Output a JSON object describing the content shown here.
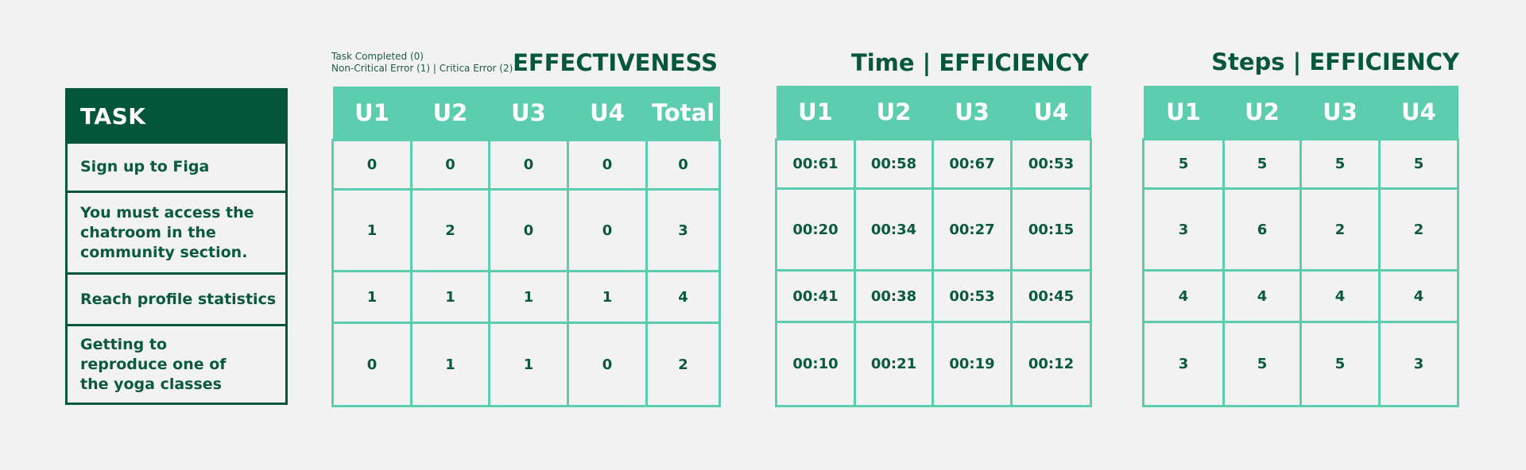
{
  "task": {
    "header": "TASK",
    "rows": [
      "Sign up to Figa",
      "You must access the\nchatroom in the\ncommunity section.",
      "Reach profile statistics",
      "Getting to\nreproduce one of\nthe yoga classes"
    ]
  },
  "effectiveness": {
    "legend": "Task Completed (0)\nNon-Critical Error (1) |  Critica Error (2)",
    "title": "EFFECTIVENESS",
    "columns": [
      "U1",
      "U2",
      "U3",
      "U4",
      "Total"
    ],
    "rows": [
      [
        "0",
        "0",
        "0",
        "0",
        "0"
      ],
      [
        "1",
        "2",
        "0",
        "0",
        "3"
      ],
      [
        "1",
        "1",
        "1",
        "1",
        "4"
      ],
      [
        "0",
        "1",
        "1",
        "0",
        "2"
      ]
    ]
  },
  "time_efficiency": {
    "title": "Time | EFFICIENCY",
    "columns": [
      "U1",
      "U2",
      "U3",
      "U4"
    ],
    "rows": [
      [
        "00:61",
        "00:58",
        "00:67",
        "00:53"
      ],
      [
        "00:20",
        "00:34",
        "00:27",
        "00:15"
      ],
      [
        "00:41",
        "00:38",
        "00:53",
        "00:45"
      ],
      [
        "00:10",
        "00:21",
        "00:19",
        "00:12"
      ]
    ]
  },
  "steps_efficiency": {
    "title": "Steps | EFFICIENCY",
    "columns": [
      "U1",
      "U2",
      "U3",
      "U4"
    ],
    "rows": [
      [
        "5",
        "5",
        "5",
        "5"
      ],
      [
        "3",
        "6",
        "2",
        "2"
      ],
      [
        "4",
        "4",
        "4",
        "4"
      ],
      [
        "3",
        "5",
        "5",
        "3"
      ]
    ]
  }
}
